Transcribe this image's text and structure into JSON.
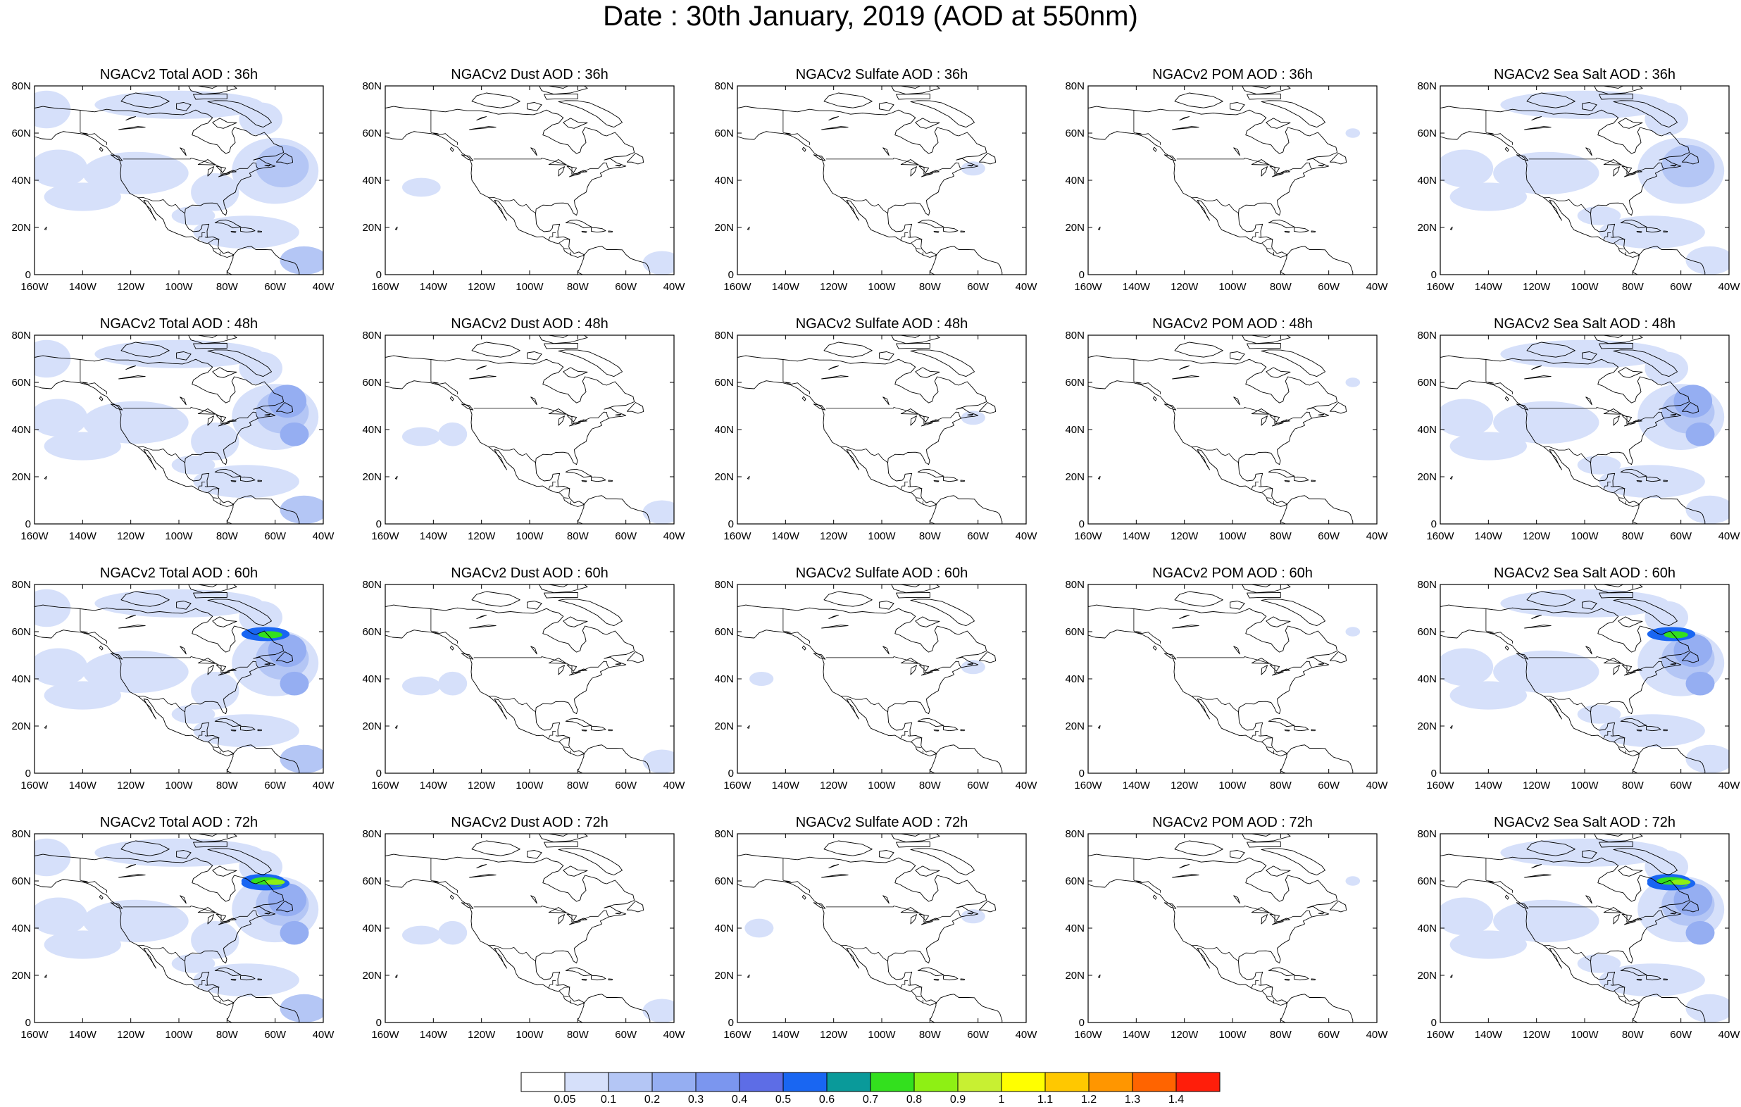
{
  "title": "Date : 30th January, 2019 (AOD at 550nm)",
  "axes": {
    "y_ticks": [
      "80N",
      "60N",
      "40N",
      "20N",
      "0"
    ],
    "x_ticks": [
      "160W",
      "140W",
      "120W",
      "100W",
      "80W",
      "60W",
      "40W"
    ],
    "lon_range": [
      -160,
      -40
    ],
    "lat_range": [
      0,
      80
    ]
  },
  "panels": [
    [
      {
        "title": "NGACv2 Total AOD : 36h",
        "variable": "total",
        "lead": "36h"
      },
      {
        "title": "NGACv2 Dust AOD : 36h",
        "variable": "dust",
        "lead": "36h"
      },
      {
        "title": "NGACv2 Sulfate AOD : 36h",
        "variable": "sulfate",
        "lead": "36h"
      },
      {
        "title": "NGACv2 POM AOD : 36h",
        "variable": "pom",
        "lead": "36h"
      },
      {
        "title": "NGACv2 Sea Salt AOD : 36h",
        "variable": "seasalt",
        "lead": "36h"
      }
    ],
    [
      {
        "title": "NGACv2 Total AOD : 48h",
        "variable": "total",
        "lead": "48h"
      },
      {
        "title": "NGACv2 Dust AOD : 48h",
        "variable": "dust",
        "lead": "48h"
      },
      {
        "title": "NGACv2 Sulfate AOD : 48h",
        "variable": "sulfate",
        "lead": "48h"
      },
      {
        "title": "NGACv2 POM AOD : 48h",
        "variable": "pom",
        "lead": "48h"
      },
      {
        "title": "NGACv2 Sea Salt AOD : 48h",
        "variable": "seasalt",
        "lead": "48h"
      }
    ],
    [
      {
        "title": "NGACv2 Total AOD : 60h",
        "variable": "total",
        "lead": "60h"
      },
      {
        "title": "NGACv2 Dust AOD : 60h",
        "variable": "dust",
        "lead": "60h"
      },
      {
        "title": "NGACv2 Sulfate AOD : 60h",
        "variable": "sulfate",
        "lead": "60h"
      },
      {
        "title": "NGACv2 POM AOD : 60h",
        "variable": "pom",
        "lead": "60h"
      },
      {
        "title": "NGACv2 Sea Salt AOD : 60h",
        "variable": "seasalt",
        "lead": "60h"
      }
    ],
    [
      {
        "title": "NGACv2 Total AOD : 72h",
        "variable": "total",
        "lead": "72h"
      },
      {
        "title": "NGACv2 Dust AOD : 72h",
        "variable": "dust",
        "lead": "72h"
      },
      {
        "title": "NGACv2 Sulfate AOD : 72h",
        "variable": "sulfate",
        "lead": "72h"
      },
      {
        "title": "NGACv2 POM AOD : 72h",
        "variable": "pom",
        "lead": "72h"
      },
      {
        "title": "NGACv2 Sea Salt  AOD : 72h",
        "variable": "seasalt",
        "lead": "72h"
      }
    ]
  ],
  "colorbar": {
    "labels": [
      "0.05",
      "0.1",
      "0.2",
      "0.3",
      "0.4",
      "0.5",
      "0.6",
      "0.7",
      "0.8",
      "0.9",
      "1",
      "1.1",
      "1.2",
      "1.3",
      "1.4"
    ],
    "colors": [
      "#ffffff",
      "#d6e0fa",
      "#b4c6f5",
      "#95aef2",
      "#7b96ef",
      "#5d6de6",
      "#1966f2",
      "#0a9a9a",
      "#33e01e",
      "#8ef014",
      "#c8f032",
      "#ffff00",
      "#ffc800",
      "#ff9600",
      "#ff6400",
      "#ff1e0a"
    ]
  }
}
